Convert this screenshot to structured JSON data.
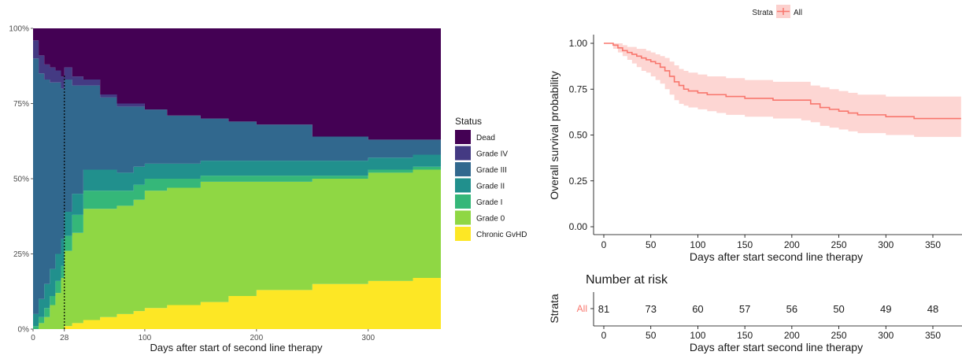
{
  "chart_data": [
    {
      "type": "area",
      "xlabel": "Days after start of second line therapy",
      "ylabel": "",
      "xlim": [
        0,
        365
      ],
      "ylim": [
        0,
        1
      ],
      "x_ticks": [
        0,
        28,
        100,
        200,
        300
      ],
      "y_ticks": [
        "0%",
        "25%",
        "50%",
        "75%",
        "100%"
      ],
      "y_tick_values": [
        0,
        0.25,
        0.5,
        0.75,
        1
      ],
      "vline": 28,
      "legend_title": "Status",
      "legend_position": "right",
      "x": [
        0,
        5,
        10,
        15,
        20,
        25,
        28,
        35,
        45,
        60,
        75,
        90,
        100,
        120,
        150,
        175,
        200,
        250,
        300,
        340,
        365
      ],
      "series": [
        {
          "name": "Chronic GvHD",
          "color": "#fde725",
          "values": [
            0,
            0,
            0,
            0,
            0,
            0,
            0.01,
            0.02,
            0.03,
            0.04,
            0.05,
            0.06,
            0.07,
            0.08,
            0.09,
            0.11,
            0.13,
            0.15,
            0.16,
            0.17,
            0.16
          ]
        },
        {
          "name": "Grade 0",
          "color": "#8fd744",
          "values": [
            0,
            0.02,
            0.04,
            0.08,
            0.12,
            0.17,
            0.25,
            0.3,
            0.37,
            0.36,
            0.36,
            0.37,
            0.39,
            0.39,
            0.4,
            0.38,
            0.36,
            0.35,
            0.36,
            0.36,
            0.37
          ]
        },
        {
          "name": "Grade I",
          "color": "#35b779",
          "values": [
            0.01,
            0.02,
            0.03,
            0.03,
            0.04,
            0.04,
            0.05,
            0.06,
            0.06,
            0.06,
            0.05,
            0.05,
            0.04,
            0.03,
            0.02,
            0.02,
            0.02,
            0.01,
            0.01,
            0.01,
            0.01
          ]
        },
        {
          "name": "Grade II",
          "color": "#21908d",
          "values": [
            0.04,
            0.06,
            0.08,
            0.09,
            0.09,
            0.09,
            0.08,
            0.07,
            0.07,
            0.07,
            0.06,
            0.06,
            0.05,
            0.05,
            0.05,
            0.05,
            0.05,
            0.05,
            0.04,
            0.04,
            0.05
          ]
        },
        {
          "name": "Grade III",
          "color": "#31688e",
          "values": [
            0.85,
            0.75,
            0.68,
            0.62,
            0.57,
            0.5,
            0.44,
            0.36,
            0.28,
            0.24,
            0.22,
            0.2,
            0.18,
            0.16,
            0.14,
            0.13,
            0.12,
            0.08,
            0.06,
            0.05,
            0.02
          ]
        },
        {
          "name": "Grade IV",
          "color": "#443a83",
          "values": [
            0.06,
            0.06,
            0.05,
            0.05,
            0.04,
            0.04,
            0.04,
            0.03,
            0.02,
            0.01,
            0.01,
            0.01,
            0,
            0,
            0,
            0,
            0,
            0,
            0,
            0,
            0
          ]
        },
        {
          "name": "Dead",
          "color": "#440154",
          "values": [
            0.04,
            0.09,
            0.12,
            0.13,
            0.14,
            0.16,
            0.13,
            0.16,
            0.17,
            0.22,
            0.25,
            0.25,
            0.27,
            0.29,
            0.3,
            0.31,
            0.32,
            0.36,
            0.37,
            0.37,
            0.39
          ]
        }
      ]
    },
    {
      "type": "line",
      "title": "",
      "xlabel": "Days after start second line therapy",
      "ylabel": "Overall survival probability",
      "xlim": [
        0,
        380
      ],
      "ylim": [
        0,
        1
      ],
      "x_ticks": [
        0,
        50,
        100,
        150,
        200,
        250,
        300,
        350
      ],
      "y_ticks": [
        "0.00",
        "0.25",
        "0.50",
        "0.75",
        "1.00"
      ],
      "y_tick_values": [
        0,
        0.25,
        0.5,
        0.75,
        1
      ],
      "legend_title": "Strata",
      "legend_position": "top",
      "series": [
        {
          "name": "All",
          "color": "#f8766d",
          "step": true,
          "x": [
            0,
            10,
            15,
            20,
            25,
            30,
            35,
            40,
            45,
            50,
            55,
            60,
            65,
            70,
            75,
            80,
            85,
            90,
            100,
            110,
            120,
            130,
            150,
            180,
            210,
            220,
            230,
            240,
            250,
            260,
            270,
            300,
            330,
            380
          ],
          "y": [
            1.0,
            0.99,
            0.975,
            0.96,
            0.95,
            0.94,
            0.93,
            0.92,
            0.91,
            0.9,
            0.89,
            0.87,
            0.85,
            0.82,
            0.79,
            0.77,
            0.75,
            0.74,
            0.73,
            0.72,
            0.72,
            0.71,
            0.7,
            0.69,
            0.69,
            0.67,
            0.65,
            0.64,
            0.63,
            0.62,
            0.61,
            0.6,
            0.59,
            0.59
          ],
          "ci_lower": [
            1.0,
            0.97,
            0.95,
            0.93,
            0.91,
            0.89,
            0.87,
            0.85,
            0.84,
            0.82,
            0.8,
            0.78,
            0.75,
            0.72,
            0.69,
            0.67,
            0.66,
            0.65,
            0.64,
            0.63,
            0.62,
            0.61,
            0.6,
            0.59,
            0.58,
            0.57,
            0.55,
            0.54,
            0.53,
            0.52,
            0.51,
            0.5,
            0.49,
            0.49
          ],
          "ci_upper": [
            1.0,
            1.0,
            1.0,
            0.99,
            0.98,
            0.98,
            0.97,
            0.97,
            0.96,
            0.95,
            0.94,
            0.93,
            0.92,
            0.9,
            0.88,
            0.86,
            0.85,
            0.84,
            0.83,
            0.82,
            0.82,
            0.81,
            0.8,
            0.79,
            0.79,
            0.77,
            0.76,
            0.75,
            0.74,
            0.73,
            0.72,
            0.71,
            0.71,
            0.71
          ]
        }
      ]
    },
    {
      "type": "table",
      "title": "Number at risk",
      "xlabel": "Days after start second line therapy",
      "ylabel": "Strata",
      "row_label": "All",
      "row_label_color": "#f8766d",
      "x_ticks": [
        0,
        50,
        100,
        150,
        200,
        250,
        300,
        350
      ],
      "xlim": [
        0,
        380
      ],
      "values": [
        81,
        73,
        60,
        57,
        56,
        50,
        49,
        48
      ]
    }
  ]
}
